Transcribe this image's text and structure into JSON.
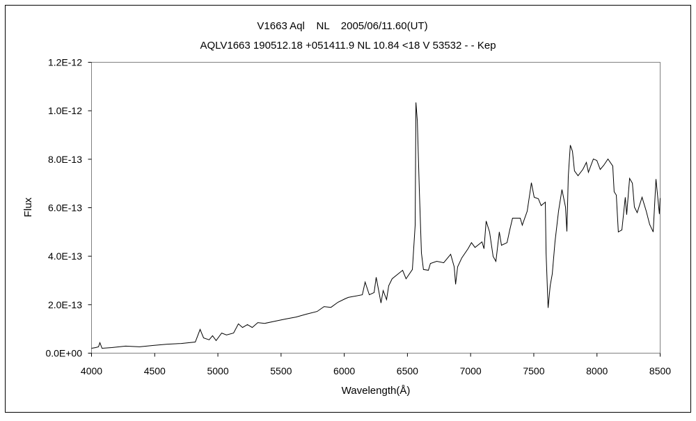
{
  "chart_data": {
    "type": "line",
    "title": "V1663 Aql    NL    2005/06/11.60(UT)",
    "subtitle": "AQLV1663 190512.18 +051411.9 NL 10.84 <18 V 53532 - - Kep",
    "xlabel": "Wavelength(Å)",
    "ylabel": "Flux",
    "xlim": [
      4000,
      8500
    ],
    "ylim": [
      0,
      1.2e-12
    ],
    "x_ticks": [
      4000,
      4500,
      5000,
      5500,
      6000,
      6500,
      7000,
      7500,
      8000,
      8500
    ],
    "x_tick_labels": [
      "4000",
      "4500",
      "5000",
      "5500",
      "6000",
      "6500",
      "7000",
      "7500",
      "8000",
      "8500"
    ],
    "y_ticks": [
      0,
      2e-13,
      4e-13,
      6e-13,
      8e-13,
      1e-12,
      1.2e-12
    ],
    "y_tick_labels": [
      "0.0E+00",
      "2.0E-13",
      "4.0E-13",
      "6.0E-13",
      "8.0E-13",
      "1.0E-12",
      "1.2E-12"
    ],
    "grid": false,
    "legend": "none",
    "line_color": "#000000",
    "series": [
      {
        "x": [
          4000,
          4033,
          4055,
          4066,
          4083,
          4160,
          4270,
          4380,
          4490,
          4600,
          4710,
          4821,
          4859,
          4887,
          4931,
          4958,
          4986,
          5030,
          5068,
          5124,
          5162,
          5195,
          5234,
          5272,
          5316,
          5371,
          5454,
          5537,
          5619,
          5702,
          5785,
          5840,
          5895,
          5950,
          6005,
          6032,
          6143,
          6165,
          6198,
          6236,
          6253,
          6291,
          6308,
          6335,
          6352,
          6379,
          6462,
          6489,
          6539,
          6561,
          6567,
          6578,
          6594,
          6611,
          6627,
          6666,
          6682,
          6732,
          6787,
          6842,
          6870,
          6881,
          6897,
          6930,
          6980,
          7007,
          7035,
          7090,
          7106,
          7123,
          7150,
          7178,
          7200,
          7227,
          7244,
          7288,
          7310,
          7332,
          7393,
          7409,
          7448,
          7481,
          7503,
          7536,
          7558,
          7591,
          7597,
          7613,
          7630,
          7646,
          7668,
          7696,
          7723,
          7751,
          7762,
          7773,
          7789,
          7806,
          7822,
          7850,
          7888,
          7916,
          7932,
          7971,
          7999,
          8026,
          8054,
          8087,
          8125,
          8136,
          8153,
          8169,
          8197,
          8224,
          8235,
          8258,
          8280,
          8296,
          8318,
          8357,
          8390,
          8417,
          8445,
          8467,
          8494,
          8500
        ],
        "y": [
          2e-14,
          2.3e-14,
          2.6e-14,
          4.3e-14,
          2e-14,
          2.3e-14,
          2.9e-14,
          2.6e-14,
          3.2e-14,
          3.7e-14,
          4e-14,
          4.6e-14,
          9.8e-14,
          6.3e-14,
          5.5e-14,
          7.2e-14,
          5.2e-14,
          8.3e-14,
          7.5e-14,
          8.3e-14,
          1.21e-13,
          1.06e-13,
          1.18e-13,
          1.06e-13,
          1.26e-13,
          1.23e-13,
          1.32e-13,
          1.41e-13,
          1.49e-13,
          1.61e-13,
          1.72e-13,
          1.92e-13,
          1.89e-13,
          2.1e-13,
          2.24e-13,
          2.3e-13,
          2.41e-13,
          2.93e-13,
          2.41e-13,
          2.5e-13,
          3.13e-13,
          2.07e-13,
          2.58e-13,
          2.21e-13,
          2.78e-13,
          3.07e-13,
          3.42e-13,
          3.07e-13,
          3.45e-13,
          5.28e-13,
          1.034e-12,
          9.59e-13,
          6.72e-13,
          4.13e-13,
          3.45e-13,
          3.42e-13,
          3.7e-13,
          3.79e-13,
          3.73e-13,
          4.08e-13,
          3.56e-13,
          2.84e-13,
          3.56e-13,
          3.93e-13,
          4.31e-13,
          4.56e-13,
          4.36e-13,
          4.59e-13,
          4.31e-13,
          5.45e-13,
          5e-13,
          3.99e-13,
          3.79e-13,
          5e-13,
          4.45e-13,
          4.56e-13,
          5.08e-13,
          5.57e-13,
          5.57e-13,
          5.28e-13,
          5.86e-13,
          7.03e-13,
          6.43e-13,
          6.37e-13,
          6.09e-13,
          6.23e-13,
          4.13e-13,
          1.87e-13,
          2.78e-13,
          3.27e-13,
          4.59e-13,
          5.86e-13,
          6.75e-13,
          6.03e-13,
          5.02e-13,
          7.29e-13,
          8.58e-13,
          8.33e-13,
          7.52e-13,
          7.32e-13,
          7.58e-13,
          7.87e-13,
          7.46e-13,
          8.01e-13,
          7.95e-13,
          7.58e-13,
          7.75e-13,
          8.01e-13,
          7.72e-13,
          6.66e-13,
          6.52e-13,
          5e-13,
          5.08e-13,
          6.43e-13,
          5.71e-13,
          7.21e-13,
          7.01e-13,
          6.03e-13,
          5.8e-13,
          6.43e-13,
          5.86e-13,
          5.31e-13,
          5e-13,
          7.18e-13,
          5.74e-13,
          6.4e-13
        ]
      }
    ]
  }
}
